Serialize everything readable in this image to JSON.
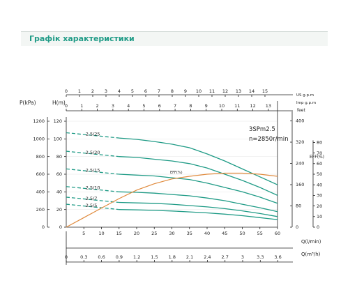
{
  "header": {
    "title": "Графік характеристики"
  },
  "chart_data": {
    "type": "line",
    "model": "3SPm2.5",
    "speed": "n=2850r/min",
    "x": {
      "label": "Q(l/min)",
      "ticks": [
        5,
        10,
        15,
        20,
        25,
        30,
        35,
        40,
        45,
        50,
        55,
        60
      ],
      "range": [
        0,
        60
      ]
    },
    "x_m3h": {
      "label": "Q(m³/h)",
      "ticks": [
        "0",
        "0.3",
        "0.6",
        "0.9",
        "1.2",
        "1.5",
        "1.8",
        "2.1",
        "2.4",
        "2.7",
        "3",
        "3.3",
        "3.6"
      ]
    },
    "x_usgpm": {
      "label": "US g.p.m",
      "ticks": [
        "0",
        "1",
        "2",
        "3",
        "4",
        "5",
        "6",
        "7",
        "8",
        "9",
        "10",
        "11",
        "12",
        "13",
        "14",
        "15"
      ]
    },
    "x_impgpm": {
      "label": "Imp g.p.m",
      "ticks": [
        "0",
        "1",
        "2",
        "3",
        "4",
        "5",
        "6",
        "7",
        "8",
        "9",
        "10",
        "11",
        "12",
        "13"
      ]
    },
    "y_head": {
      "label": "H(m)",
      "range": [
        0,
        120
      ],
      "ticks": [
        0,
        20,
        40,
        60,
        80,
        100,
        120
      ]
    },
    "y_pressure": {
      "label": "P(kPa)",
      "ticks": [
        0,
        200,
        400,
        600,
        800,
        1000,
        1200
      ]
    },
    "y_feet": {
      "label": "feet",
      "ticks": [
        0,
        80,
        160,
        240,
        320,
        400
      ]
    },
    "y_eff": {
      "label": "EFF(%)",
      "range": [
        0,
        100
      ],
      "ticks": [
        0,
        10,
        20,
        30,
        40,
        50,
        60,
        70,
        80
      ]
    },
    "series": [
      {
        "name": "2.5/25",
        "dashed_x": [
          0,
          15
        ],
        "x": [
          15,
          20,
          25,
          30,
          35,
          40,
          45,
          50,
          55,
          60
        ],
        "values": [
          101,
          99.5,
          97,
          94,
          90,
          83,
          75,
          66,
          57,
          48
        ]
      },
      {
        "name": "2.5/20",
        "dashed_x": [
          0,
          15
        ],
        "x": [
          15,
          20,
          25,
          30,
          35,
          40,
          45,
          50,
          55,
          60
        ],
        "values": [
          80,
          79,
          77,
          75,
          72,
          67,
          60,
          53,
          45,
          36
        ]
      },
      {
        "name": "2.5/15",
        "dashed_x": [
          0,
          15
        ],
        "x": [
          15,
          20,
          25,
          30,
          35,
          40,
          45,
          50,
          55,
          60
        ],
        "values": [
          60,
          59,
          58,
          56,
          54,
          50,
          45,
          40,
          34,
          27
        ]
      },
      {
        "name": "2.5/10",
        "dashed_x": [
          0,
          15
        ],
        "x": [
          15,
          20,
          25,
          30,
          35,
          40,
          45,
          50,
          55,
          60
        ],
        "values": [
          40,
          39.5,
          38.5,
          37,
          35.5,
          33,
          30,
          26,
          22,
          17.5
        ]
      },
      {
        "name": "2.5/7",
        "dashed_x": [
          0,
          15
        ],
        "x": [
          15,
          20,
          25,
          30,
          35,
          40,
          45,
          50,
          55,
          60
        ],
        "values": [
          28,
          27.5,
          27,
          26,
          24.5,
          23,
          21,
          18.5,
          15.5,
          12
        ]
      },
      {
        "name": "2.5/5",
        "dashed_x": [
          0,
          15
        ],
        "x": [
          15,
          20,
          25,
          30,
          35,
          40,
          45,
          50,
          55,
          60
        ],
        "values": [
          20,
          19.6,
          19,
          18.3,
          17.3,
          16.2,
          14.8,
          13,
          10.8,
          8.5
        ]
      }
    ],
    "efficiency": {
      "name": "EFF(%)",
      "x": [
        0,
        5,
        10,
        15,
        20,
        25,
        30,
        35,
        40,
        45,
        50,
        55,
        60
      ],
      "values": [
        0,
        9,
        18,
        27,
        35,
        41,
        45.5,
        48,
        50,
        51,
        51,
        50,
        48
      ]
    },
    "colors": {
      "curve": "#1f9b86",
      "eff": "#e08a3c",
      "axis": "#222222",
      "accent": "#1f9b86"
    }
  }
}
